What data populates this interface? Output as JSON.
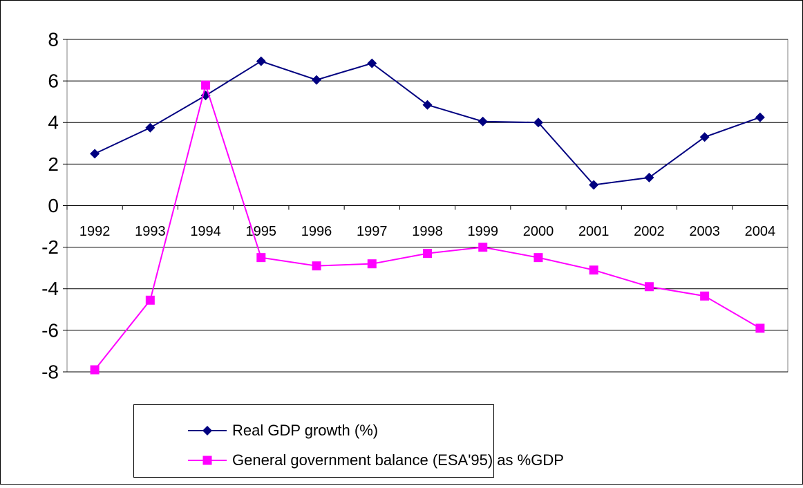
{
  "chart_data": {
    "type": "line",
    "categories": [
      "1992",
      "1993",
      "1994",
      "1995",
      "1996",
      "1997",
      "1998",
      "1999",
      "2000",
      "2001",
      "2002",
      "2003",
      "2004"
    ],
    "series": [
      {
        "name": "Real GDP growth (%)",
        "color": "#000080",
        "marker": "diamond",
        "values": [
          2.5,
          3.75,
          5.3,
          6.95,
          6.05,
          6.85,
          4.85,
          4.05,
          4.0,
          1.0,
          1.35,
          3.3,
          4.25
        ]
      },
      {
        "name": "General government balance (ESA'95) as %GDP",
        "color": "#FF00FF",
        "marker": "square",
        "values": [
          -7.9,
          -4.55,
          5.8,
          -2.5,
          -2.9,
          -2.8,
          -2.3,
          -2.0,
          -2.5,
          -3.1,
          -3.9,
          -4.35,
          -5.9
        ]
      }
    ],
    "ylim": [
      -8,
      8
    ],
    "yticks": [
      -8,
      -6,
      -4,
      -2,
      0,
      2,
      4,
      6,
      8
    ],
    "grid": true,
    "legend": "bottom"
  }
}
